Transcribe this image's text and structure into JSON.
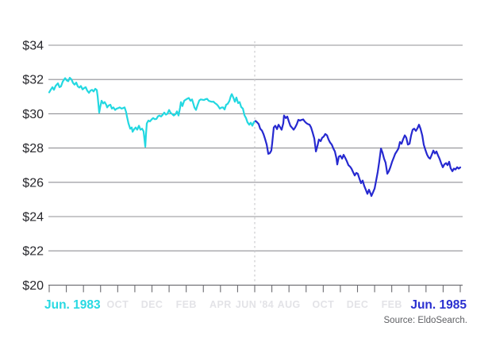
{
  "source": {
    "text": "Source: EldoSearch."
  },
  "colors": {
    "background": "#ffffff",
    "grid": "#919196",
    "axis": "#6b6b70",
    "divider": "#c6c6ca",
    "faint_label": "#e3e3e7",
    "y_label": "#27272c",
    "series_past": "#23d8e1",
    "series_recent": "#2629d0",
    "start_label": "#28d9e2",
    "end_label": "#2a30d0"
  },
  "chart_data": {
    "type": "line",
    "title": "",
    "xlabel": "",
    "ylabel": "",
    "ylim": [
      20,
      34
    ],
    "grid": true,
    "y_ticks": [
      "$34",
      "$32",
      "$30",
      "$28",
      "$26",
      "$24",
      "$22",
      "$20"
    ],
    "y_values": [
      34,
      32,
      30,
      28,
      26,
      24,
      22,
      20
    ],
    "x_axis": {
      "start_label": "Jun. 1983",
      "end_label": "Jun. 1985",
      "interior_labels": [
        "OCT",
        "DEC",
        "FEB",
        "APR",
        "JUN '84",
        "AUG",
        "OCT",
        "DEC",
        "FEB"
      ],
      "interior_label_months": [
        4,
        6,
        8,
        10,
        12,
        14,
        16,
        18,
        20
      ],
      "months_total": 24,
      "tick_every_months": 1
    },
    "divider_month": 12,
    "series": [
      {
        "key": "jun-1983-to-jun-1984",
        "color": "#23d8e1",
        "points": [
          [
            0,
            31.25
          ],
          [
            0.09,
            31.4
          ],
          [
            0.19,
            31.55
          ],
          [
            0.28,
            31.4
          ],
          [
            0.37,
            31.62
          ],
          [
            0.51,
            31.78
          ],
          [
            0.6,
            31.55
          ],
          [
            0.69,
            31.6
          ],
          [
            0.79,
            31.88
          ],
          [
            0.93,
            32.08
          ],
          [
            1.02,
            31.95
          ],
          [
            1.11,
            31.9
          ],
          [
            1.2,
            32.1
          ],
          [
            1.3,
            32.0
          ],
          [
            1.39,
            31.8
          ],
          [
            1.48,
            31.7
          ],
          [
            1.58,
            31.82
          ],
          [
            1.67,
            31.6
          ],
          [
            1.76,
            31.53
          ],
          [
            1.85,
            31.62
          ],
          [
            1.95,
            31.42
          ],
          [
            2.04,
            31.5
          ],
          [
            2.13,
            31.55
          ],
          [
            2.22,
            31.35
          ],
          [
            2.32,
            31.22
          ],
          [
            2.41,
            31.35
          ],
          [
            2.5,
            31.4
          ],
          [
            2.59,
            31.3
          ],
          [
            2.69,
            31.46
          ],
          [
            2.78,
            31.38
          ],
          [
            2.83,
            31.0
          ],
          [
            2.92,
            30.07
          ],
          [
            2.97,
            30.35
          ],
          [
            3.06,
            30.76
          ],
          [
            3.15,
            30.6
          ],
          [
            3.24,
            30.68
          ],
          [
            3.34,
            30.5
          ],
          [
            3.38,
            30.37
          ],
          [
            3.47,
            30.48
          ],
          [
            3.57,
            30.53
          ],
          [
            3.66,
            30.3
          ],
          [
            3.75,
            30.37
          ],
          [
            3.85,
            30.22
          ],
          [
            3.94,
            30.3
          ],
          [
            4.03,
            30.33
          ],
          [
            4.12,
            30.37
          ],
          [
            4.22,
            30.3
          ],
          [
            4.31,
            30.33
          ],
          [
            4.4,
            30.37
          ],
          [
            4.49,
            30.1
          ],
          [
            4.54,
            29.84
          ],
          [
            4.63,
            29.44
          ],
          [
            4.73,
            29.13
          ],
          [
            4.82,
            29.2
          ],
          [
            4.87,
            28.95
          ],
          [
            4.96,
            29.1
          ],
          [
            5.05,
            29.2
          ],
          [
            5.14,
            29.07
          ],
          [
            5.24,
            29.3
          ],
          [
            5.33,
            29.07
          ],
          [
            5.42,
            29.13
          ],
          [
            5.51,
            28.98
          ],
          [
            5.61,
            28.08
          ],
          [
            5.65,
            28.75
          ],
          [
            5.7,
            29.44
          ],
          [
            5.79,
            29.6
          ],
          [
            5.88,
            29.55
          ],
          [
            5.98,
            29.67
          ],
          [
            6.07,
            29.75
          ],
          [
            6.16,
            29.68
          ],
          [
            6.26,
            29.7
          ],
          [
            6.35,
            29.85
          ],
          [
            6.44,
            29.9
          ],
          [
            6.53,
            29.84
          ],
          [
            6.63,
            29.95
          ],
          [
            6.72,
            30.07
          ],
          [
            6.81,
            29.95
          ],
          [
            6.9,
            30.0
          ],
          [
            7.0,
            30.22
          ],
          [
            7.09,
            30.05
          ],
          [
            7.18,
            29.98
          ],
          [
            7.27,
            29.9
          ],
          [
            7.37,
            29.97
          ],
          [
            7.46,
            30.14
          ],
          [
            7.55,
            29.9
          ],
          [
            7.64,
            30.35
          ],
          [
            7.69,
            30.68
          ],
          [
            7.78,
            30.45
          ],
          [
            7.88,
            30.76
          ],
          [
            7.97,
            30.82
          ],
          [
            8.06,
            30.88
          ],
          [
            8.15,
            30.92
          ],
          [
            8.25,
            30.76
          ],
          [
            8.34,
            30.84
          ],
          [
            8.43,
            30.55
          ],
          [
            8.48,
            30.37
          ],
          [
            8.57,
            30.22
          ],
          [
            8.66,
            30.5
          ],
          [
            8.76,
            30.78
          ],
          [
            8.85,
            30.84
          ],
          [
            8.94,
            30.82
          ],
          [
            9.03,
            30.8
          ],
          [
            9.13,
            30.85
          ],
          [
            9.22,
            30.87
          ],
          [
            9.31,
            30.76
          ],
          [
            9.41,
            30.72
          ],
          [
            9.5,
            30.7
          ],
          [
            9.59,
            30.71
          ],
          [
            9.68,
            30.62
          ],
          [
            9.78,
            30.55
          ],
          [
            9.87,
            30.45
          ],
          [
            9.96,
            30.3
          ],
          [
            10.05,
            30.36
          ],
          [
            10.15,
            30.37
          ],
          [
            10.24,
            30.25
          ],
          [
            10.33,
            30.53
          ],
          [
            10.42,
            30.58
          ],
          [
            10.52,
            30.75
          ],
          [
            10.61,
            31.05
          ],
          [
            10.66,
            31.15
          ],
          [
            10.75,
            30.95
          ],
          [
            10.84,
            30.7
          ],
          [
            10.93,
            30.95
          ],
          [
            11.03,
            30.62
          ],
          [
            11.12,
            30.68
          ],
          [
            11.21,
            30.4
          ],
          [
            11.31,
            30.3
          ],
          [
            11.4,
            29.92
          ],
          [
            11.49,
            29.75
          ],
          [
            11.58,
            29.5
          ],
          [
            11.68,
            29.36
          ],
          [
            11.77,
            29.48
          ],
          [
            11.86,
            29.3
          ],
          [
            11.95,
            29.52
          ],
          [
            12.05,
            29.58
          ]
        ]
      },
      {
        "key": "jun-1984-to-jun-1985",
        "color": "#2629d0",
        "points": [
          [
            12.05,
            29.58
          ],
          [
            12.14,
            29.5
          ],
          [
            12.23,
            29.4
          ],
          [
            12.32,
            29.13
          ],
          [
            12.42,
            29.02
          ],
          [
            12.51,
            28.82
          ],
          [
            12.6,
            28.55
          ],
          [
            12.7,
            28.2
          ],
          [
            12.79,
            27.66
          ],
          [
            12.88,
            27.7
          ],
          [
            12.97,
            27.85
          ],
          [
            13.02,
            28.28
          ],
          [
            13.11,
            29.2
          ],
          [
            13.2,
            29.3
          ],
          [
            13.3,
            29.1
          ],
          [
            13.39,
            29.36
          ],
          [
            13.48,
            29.22
          ],
          [
            13.57,
            29.07
          ],
          [
            13.67,
            29.45
          ],
          [
            13.71,
            29.9
          ],
          [
            13.81,
            29.75
          ],
          [
            13.9,
            29.84
          ],
          [
            13.99,
            29.55
          ],
          [
            14.08,
            29.3
          ],
          [
            14.18,
            29.18
          ],
          [
            14.27,
            29.07
          ],
          [
            14.36,
            29.2
          ],
          [
            14.46,
            29.4
          ],
          [
            14.55,
            29.65
          ],
          [
            14.64,
            29.6
          ],
          [
            14.73,
            29.64
          ],
          [
            14.83,
            29.67
          ],
          [
            14.92,
            29.55
          ],
          [
            15.01,
            29.46
          ],
          [
            15.1,
            29.4
          ],
          [
            15.2,
            29.36
          ],
          [
            15.29,
            29.2
          ],
          [
            15.38,
            28.9
          ],
          [
            15.48,
            28.55
          ],
          [
            15.57,
            27.8
          ],
          [
            15.66,
            28.12
          ],
          [
            15.75,
            28.5
          ],
          [
            15.85,
            28.4
          ],
          [
            15.94,
            28.6
          ],
          [
            16.03,
            28.67
          ],
          [
            16.12,
            28.82
          ],
          [
            16.22,
            28.74
          ],
          [
            16.31,
            28.5
          ],
          [
            16.4,
            28.32
          ],
          [
            16.5,
            28.2
          ],
          [
            16.59,
            27.97
          ],
          [
            16.68,
            27.8
          ],
          [
            16.77,
            27.4
          ],
          [
            16.82,
            27.04
          ],
          [
            16.91,
            27.5
          ],
          [
            17.0,
            27.55
          ],
          [
            17.1,
            27.38
          ],
          [
            17.19,
            27.6
          ],
          [
            17.28,
            27.43
          ],
          [
            17.37,
            27.25
          ],
          [
            17.47,
            27.0
          ],
          [
            17.56,
            26.92
          ],
          [
            17.65,
            26.8
          ],
          [
            17.74,
            26.6
          ],
          [
            17.84,
            26.4
          ],
          [
            17.93,
            26.55
          ],
          [
            18.02,
            26.5
          ],
          [
            18.12,
            26.19
          ],
          [
            18.21,
            25.95
          ],
          [
            18.3,
            26.1
          ],
          [
            18.39,
            25.8
          ],
          [
            18.49,
            25.55
          ],
          [
            18.58,
            25.33
          ],
          [
            18.67,
            25.57
          ],
          [
            18.77,
            25.33
          ],
          [
            18.81,
            25.2
          ],
          [
            18.9,
            25.4
          ],
          [
            19.0,
            25.64
          ],
          [
            19.09,
            26.1
          ],
          [
            19.18,
            26.6
          ],
          [
            19.27,
            27.2
          ],
          [
            19.37,
            27.97
          ],
          [
            19.46,
            27.73
          ],
          [
            19.55,
            27.38
          ],
          [
            19.64,
            27.15
          ],
          [
            19.74,
            26.5
          ],
          [
            19.83,
            26.65
          ],
          [
            19.92,
            26.88
          ],
          [
            20.02,
            27.2
          ],
          [
            20.11,
            27.42
          ],
          [
            20.2,
            27.66
          ],
          [
            20.29,
            27.8
          ],
          [
            20.39,
            27.97
          ],
          [
            20.48,
            28.35
          ],
          [
            20.57,
            28.25
          ],
          [
            20.66,
            28.5
          ],
          [
            20.76,
            28.74
          ],
          [
            20.85,
            28.6
          ],
          [
            20.94,
            28.2
          ],
          [
            21.04,
            28.25
          ],
          [
            21.13,
            28.74
          ],
          [
            21.22,
            29.07
          ],
          [
            21.31,
            29.13
          ],
          [
            21.41,
            29.0
          ],
          [
            21.5,
            29.15
          ],
          [
            21.59,
            29.36
          ],
          [
            21.68,
            29.13
          ],
          [
            21.78,
            28.74
          ],
          [
            21.87,
            28.2
          ],
          [
            21.96,
            27.9
          ],
          [
            22.06,
            27.62
          ],
          [
            22.15,
            27.45
          ],
          [
            22.24,
            27.38
          ],
          [
            22.33,
            27.6
          ],
          [
            22.43,
            27.85
          ],
          [
            22.52,
            27.68
          ],
          [
            22.61,
            27.8
          ],
          [
            22.7,
            27.58
          ],
          [
            22.8,
            27.35
          ],
          [
            22.89,
            27.1
          ],
          [
            22.98,
            26.88
          ],
          [
            23.07,
            27.04
          ],
          [
            23.17,
            27.12
          ],
          [
            23.26,
            27.0
          ],
          [
            23.35,
            27.2
          ],
          [
            23.44,
            26.82
          ],
          [
            23.54,
            26.65
          ],
          [
            23.63,
            26.8
          ],
          [
            23.72,
            26.75
          ],
          [
            23.82,
            26.88
          ],
          [
            23.91,
            26.8
          ],
          [
            24.0,
            26.87
          ]
        ]
      }
    ]
  }
}
